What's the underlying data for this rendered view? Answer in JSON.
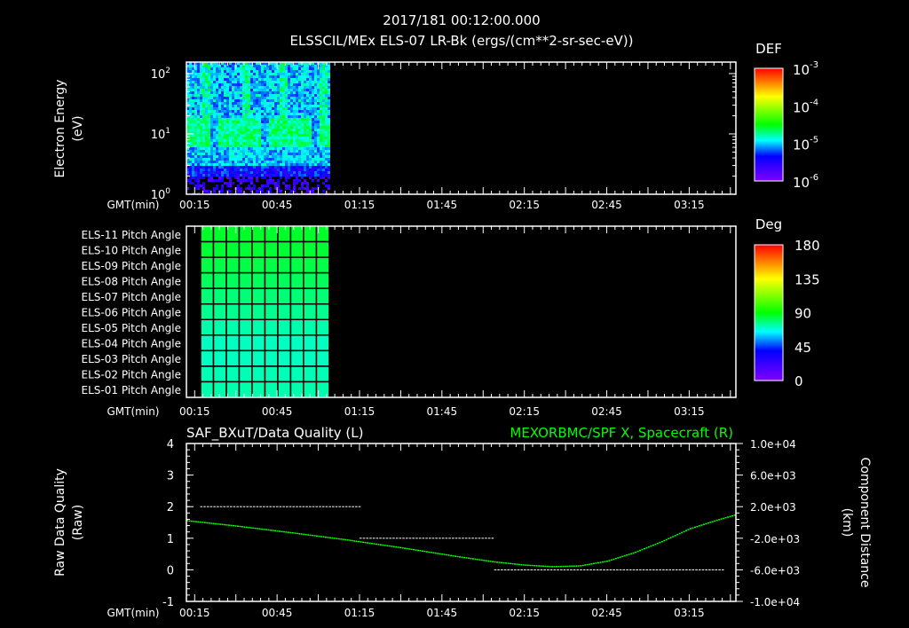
{
  "header": {
    "date_time": "2017/181 00:12:00.000",
    "title": "ELSSCIL/MEx ELS-07 LR-Bk  (ergs/(cm**2-sr-sec-eV))"
  },
  "time_axis": {
    "label": "GMT(min)",
    "ticks": [
      "00:15",
      "00:45",
      "01:15",
      "01:45",
      "02:15",
      "02:45",
      "03:15"
    ],
    "tick_minutes": [
      15,
      45,
      75,
      105,
      135,
      165,
      195
    ],
    "range_minutes": [
      12,
      212
    ]
  },
  "colors": {
    "white": "#ffffff",
    "green": "#00ff00",
    "background": "#000000"
  },
  "chart_data": [
    {
      "type": "heatmap",
      "title": "ELSSCIL/MEx ELS-07 LR-Bk",
      "ylabel_line1": "Electron Energy",
      "ylabel_line2": "(eV)",
      "yscale": "log",
      "ylim": [
        1,
        155
      ],
      "y_ticks": [
        {
          "base": "10",
          "exp": "0",
          "value": 1
        },
        {
          "base": "10",
          "exp": "1",
          "value": 10
        },
        {
          "base": "10",
          "exp": "2",
          "value": 100
        }
      ],
      "data_time_range_minutes": [
        12,
        64
      ],
      "colorbar": {
        "label": "DEF",
        "scale": "log",
        "range": [
          1e-06,
          0.001
        ],
        "ticks": [
          {
            "base": "10",
            "exp": "-3"
          },
          {
            "base": "10",
            "exp": "-4"
          },
          {
            "base": "10",
            "exp": "-5"
          },
          {
            "base": "10",
            "exp": "-6"
          }
        ]
      }
    },
    {
      "type": "heatmap",
      "title": "Pitch Angle",
      "rows": [
        "ELS-11 Pitch Angle",
        "ELS-10 Pitch Angle",
        "ELS-09 Pitch Angle",
        "ELS-08 Pitch Angle",
        "ELS-07 Pitch Angle",
        "ELS-06 Pitch Angle",
        "ELS-05 Pitch Angle",
        "ELS-04 Pitch Angle",
        "ELS-03 Pitch Angle",
        "ELS-02 Pitch Angle",
        "ELS-01 Pitch Angle"
      ],
      "row_values_deg": [
        86,
        85,
        83,
        81,
        78,
        76,
        73,
        71,
        71,
        72,
        73
      ],
      "data_time_range_minutes": [
        17,
        64
      ],
      "columns": 10,
      "colorbar": {
        "label": "Deg",
        "range": [
          0,
          180
        ],
        "ticks": [
          "180",
          "135",
          "90",
          "45",
          "0"
        ]
      }
    },
    {
      "type": "line",
      "title_left": "SAF_BXuT/Data Quality (L)",
      "title_right": "MEXORBMC/SPF X, Spacecraft (R)",
      "ylabel_left_line1": "Raw Data Quality",
      "ylabel_left_line2": "(Raw)",
      "ylabel_right_line1": "Component Distance",
      "ylabel_right_line2": "(km)",
      "ylim_left": [
        -1,
        4
      ],
      "y_ticks_left": [
        "4",
        "3",
        "2",
        "1",
        "0",
        "-1"
      ],
      "ylim_right": [
        -10000,
        10000
      ],
      "y_ticks_right": [
        "1.0e+04",
        "6.0e+03",
        "2.0e+03",
        "-2.0e+03",
        "-6.0e+03",
        "-1.0e+04"
      ],
      "series": [
        {
          "name": "Data Quality",
          "axis": "left",
          "color": "#ffffff",
          "segments": [
            {
              "t": [
                17,
                75
              ],
              "value": 2
            },
            {
              "t": [
                75,
                124
              ],
              "value": 1
            },
            {
              "t": [
                124,
                207
              ],
              "value": 0
            }
          ]
        },
        {
          "name": "SPF X",
          "axis": "right",
          "color": "#00ff00",
          "t": [
            12,
            30,
            50,
            70,
            90,
            110,
            124,
            135,
            145,
            155,
            165,
            175,
            185,
            195,
            205,
            212
          ],
          "km": [
            230,
            -450,
            -1300,
            -2200,
            -3200,
            -4300,
            -5000,
            -5400,
            -5600,
            -5500,
            -4900,
            -3800,
            -2400,
            -800,
            300,
            1000
          ]
        }
      ]
    }
  ]
}
